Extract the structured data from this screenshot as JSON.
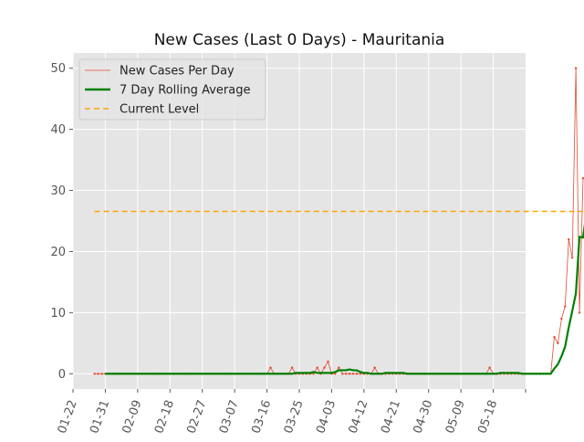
{
  "chart_data": {
    "type": "line",
    "title": "New Cases (Last 0 Days) - Mauritania",
    "xlabel": "",
    "ylabel": "",
    "x_range": [
      "2020-01-22",
      "2020-05-27"
    ],
    "ylim": [
      -2.5,
      52.5
    ],
    "y_ticks": [
      0,
      10,
      20,
      30,
      40,
      50
    ],
    "x_ticks": [
      "01-22",
      "01-31",
      "02-09",
      "02-18",
      "02-27",
      "03-07",
      "03-16",
      "03-25",
      "04-03",
      "04-12",
      "04-21",
      "04-30",
      "05-09",
      "05-18"
    ],
    "grid": true,
    "legend_position": "top-left",
    "start_date": "2020-01-28",
    "series": [
      {
        "name": "New Cases Per Day",
        "color": "#e24a33",
        "style": "thin-line-with-points",
        "values": [
          0,
          0,
          0,
          0,
          0,
          0,
          0,
          0,
          0,
          0,
          0,
          0,
          0,
          0,
          0,
          0,
          0,
          0,
          0,
          0,
          0,
          0,
          0,
          0,
          0,
          0,
          0,
          0,
          0,
          0,
          0,
          0,
          0,
          0,
          0,
          0,
          0,
          0,
          0,
          0,
          0,
          0,
          0,
          0,
          0,
          0,
          0,
          0,
          0,
          1,
          0,
          0,
          0,
          0,
          0,
          1,
          0,
          0,
          0,
          0,
          0,
          0,
          1,
          0,
          1,
          2,
          0,
          0,
          1,
          0,
          0,
          0,
          0,
          0,
          0,
          0,
          0,
          0,
          1,
          0,
          0,
          0,
          0,
          0,
          0,
          0,
          0,
          0,
          0,
          0,
          0,
          0,
          0,
          0,
          0,
          0,
          0,
          0,
          0,
          0,
          0,
          0,
          0,
          0,
          0,
          0,
          0,
          0,
          0,
          0,
          1,
          0,
          0,
          0,
          0,
          0,
          0,
          0,
          0,
          0,
          0,
          0,
          0,
          0,
          0,
          0,
          0,
          0,
          6,
          5,
          9,
          11,
          22,
          19,
          50,
          10,
          32
        ]
      },
      {
        "name": "7 Day Rolling Average",
        "color": "#008000",
        "style": "thick-line",
        "start_offset": 3,
        "values": [
          0,
          0,
          0,
          0,
          0,
          0,
          0,
          0,
          0,
          0,
          0,
          0,
          0,
          0,
          0,
          0,
          0,
          0,
          0,
          0,
          0,
          0,
          0,
          0,
          0,
          0,
          0,
          0,
          0,
          0,
          0,
          0,
          0,
          0,
          0,
          0,
          0,
          0,
          0,
          0,
          0,
          0,
          0,
          0,
          0,
          0,
          0,
          0,
          0,
          0,
          0,
          0,
          0,
          0.14,
          0.14,
          0.14,
          0.14,
          0.14,
          0.29,
          0.14,
          0.14,
          0.14,
          0.14,
          0.14,
          0.29,
          0.57,
          0.57,
          0.57,
          0.71,
          0.57,
          0.57,
          0.29,
          0.14,
          0.14,
          0,
          0,
          0,
          0,
          0.14,
          0.14,
          0.14,
          0.14,
          0.14,
          0.14,
          0,
          0,
          0,
          0,
          0,
          0,
          0,
          0,
          0,
          0,
          0,
          0,
          0,
          0,
          0,
          0,
          0,
          0,
          0,
          0,
          0,
          0,
          0,
          0,
          0,
          0,
          0.14,
          0.14,
          0.14,
          0.14,
          0.14,
          0.14,
          0,
          0,
          0,
          0,
          0,
          0,
          0,
          0,
          0,
          0.86,
          1.57,
          2.86,
          4.43,
          7.57,
          10.29,
          13.14,
          22.43,
          22.29,
          26.57
        ]
      },
      {
        "name": "Current Level",
        "color": "#ffa500",
        "style": "dashed",
        "value": 26.57
      }
    ]
  }
}
